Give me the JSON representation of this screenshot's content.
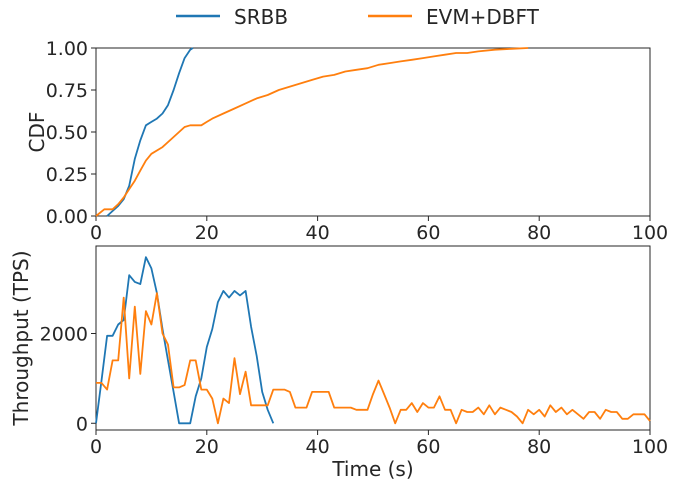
{
  "legend": [
    {
      "name": "SRBB",
      "color": "#1f77b4"
    },
    {
      "name": "EVM+DBFT",
      "color": "#ff7f0e"
    }
  ],
  "chart_data": [
    {
      "type": "line",
      "title": "",
      "xlabel": "",
      "ylabel": "CDF",
      "xlim": [
        0,
        100
      ],
      "ylim": [
        0,
        1
      ],
      "x_ticks": [
        "0",
        "20",
        "40",
        "60",
        "80",
        "100"
      ],
      "y_ticks": [
        "0.00",
        "0.25",
        "0.50",
        "0.75",
        "1.00"
      ],
      "grid": false,
      "series": [
        {
          "name": "SRBB",
          "color": "#1f77b4",
          "points": [
            [
              2,
              0
            ],
            [
              3,
              0.03
            ],
            [
              4,
              0.06
            ],
            [
              5,
              0.1
            ],
            [
              6,
              0.18
            ],
            [
              7,
              0.34
            ],
            [
              8,
              0.45
            ],
            [
              9,
              0.54
            ],
            [
              10,
              0.56
            ],
            [
              11,
              0.58
            ],
            [
              12,
              0.61
            ],
            [
              13,
              0.66
            ],
            [
              14,
              0.75
            ],
            [
              15,
              0.85
            ],
            [
              16,
              0.94
            ],
            [
              17,
              0.99
            ],
            [
              17.5,
              1.0
            ]
          ]
        },
        {
          "name": "EVM+DBFT",
          "color": "#ff7f0e",
          "points": [
            [
              0,
              0
            ],
            [
              1.5,
              0.04
            ],
            [
              3,
              0.04
            ],
            [
              4,
              0.07
            ],
            [
              5,
              0.11
            ],
            [
              6,
              0.16
            ],
            [
              7,
              0.21
            ],
            [
              8,
              0.27
            ],
            [
              9,
              0.33
            ],
            [
              10,
              0.37
            ],
            [
              12,
              0.41
            ],
            [
              14,
              0.47
            ],
            [
              16,
              0.53
            ],
            [
              17,
              0.54
            ],
            [
              19,
              0.54
            ],
            [
              20,
              0.56
            ],
            [
              21,
              0.58
            ],
            [
              23,
              0.61
            ],
            [
              25,
              0.64
            ],
            [
              27,
              0.67
            ],
            [
              29,
              0.7
            ],
            [
              31,
              0.72
            ],
            [
              33,
              0.75
            ],
            [
              35,
              0.77
            ],
            [
              37,
              0.79
            ],
            [
              39,
              0.81
            ],
            [
              41,
              0.83
            ],
            [
              43,
              0.84
            ],
            [
              45,
              0.86
            ],
            [
              47,
              0.87
            ],
            [
              49,
              0.88
            ],
            [
              51,
              0.9
            ],
            [
              53,
              0.91
            ],
            [
              55,
              0.92
            ],
            [
              57,
              0.93
            ],
            [
              59,
              0.94
            ],
            [
              61,
              0.95
            ],
            [
              63,
              0.96
            ],
            [
              65,
              0.97
            ],
            [
              67,
              0.97
            ],
            [
              69,
              0.98
            ],
            [
              72,
              0.99
            ],
            [
              75,
              0.995
            ],
            [
              78,
              1.0
            ]
          ]
        }
      ]
    },
    {
      "type": "line",
      "title": "",
      "xlabel": "Time (s)",
      "ylabel": "Throughput (TPS)",
      "xlim": [
        0,
        100
      ],
      "ylim": [
        -150,
        3950
      ],
      "x_ticks": [
        "0",
        "20",
        "40",
        "60",
        "80",
        "100"
      ],
      "y_ticks": [
        "0",
        "2000"
      ],
      "grid": false,
      "series": [
        {
          "name": "SRBB",
          "color": "#1f77b4",
          "points": [
            [
              0,
              0
            ],
            [
              1,
              950
            ],
            [
              2,
              1950
            ],
            [
              3,
              1950
            ],
            [
              4,
              2200
            ],
            [
              5,
              2300
            ],
            [
              6,
              3300
            ],
            [
              7,
              3150
            ],
            [
              8,
              3100
            ],
            [
              9,
              3700
            ],
            [
              10,
              3450
            ],
            [
              11,
              2900
            ],
            [
              12,
              2100
            ],
            [
              13,
              1400
            ],
            [
              14,
              700
            ],
            [
              15,
              0
            ],
            [
              16,
              0
            ],
            [
              17,
              0
            ],
            [
              18,
              600
            ],
            [
              19,
              1000
            ],
            [
              20,
              1700
            ],
            [
              21,
              2100
            ],
            [
              22,
              2700
            ],
            [
              23,
              2950
            ],
            [
              24,
              2800
            ],
            [
              25,
              2950
            ],
            [
              26,
              2850
            ],
            [
              27,
              2950
            ],
            [
              28,
              2150
            ],
            [
              29,
              1500
            ],
            [
              30,
              700
            ],
            [
              31,
              300
            ],
            [
              32,
              0
            ]
          ]
        },
        {
          "name": "EVM+DBFT",
          "color": "#ff7f0e",
          "points": [
            [
              0,
              900
            ],
            [
              1,
              900
            ],
            [
              2,
              750
            ],
            [
              3,
              1400
            ],
            [
              4,
              1400
            ],
            [
              5,
              2800
            ],
            [
              6,
              1000
            ],
            [
              7,
              2600
            ],
            [
              8,
              1100
            ],
            [
              9,
              2500
            ],
            [
              10,
              2200
            ],
            [
              11,
              2900
            ],
            [
              12,
              2000
            ],
            [
              13,
              1750
            ],
            [
              14,
              800
            ],
            [
              15,
              800
            ],
            [
              16,
              850
            ],
            [
              17,
              1400
            ],
            [
              18,
              1400
            ],
            [
              19,
              750
            ],
            [
              20,
              750
            ],
            [
              21,
              550
            ],
            [
              22,
              0
            ],
            [
              23,
              550
            ],
            [
              24,
              450
            ],
            [
              25,
              1450
            ],
            [
              26,
              650
            ],
            [
              27,
              1150
            ],
            [
              28,
              400
            ],
            [
              29,
              400
            ],
            [
              30,
              400
            ],
            [
              31,
              400
            ],
            [
              32,
              750
            ],
            [
              33,
              750
            ],
            [
              34,
              750
            ],
            [
              35,
              700
            ],
            [
              36,
              350
            ],
            [
              37,
              350
            ],
            [
              38,
              350
            ],
            [
              39,
              700
            ],
            [
              40,
              700
            ],
            [
              41,
              700
            ],
            [
              42,
              700
            ],
            [
              43,
              350
            ],
            [
              44,
              350
            ],
            [
              45,
              350
            ],
            [
              46,
              350
            ],
            [
              47,
              300
            ],
            [
              48,
              300
            ],
            [
              49,
              300
            ],
            [
              50,
              650
            ],
            [
              51,
              950
            ],
            [
              52,
              650
            ],
            [
              53,
              350
            ],
            [
              54,
              0
            ],
            [
              55,
              300
            ],
            [
              56,
              300
            ],
            [
              57,
              450
            ],
            [
              58,
              250
            ],
            [
              59,
              450
            ],
            [
              60,
              350
            ],
            [
              61,
              350
            ],
            [
              62,
              600
            ],
            [
              63,
              300
            ],
            [
              64,
              300
            ],
            [
              65,
              0
            ],
            [
              66,
              300
            ],
            [
              67,
              250
            ],
            [
              68,
              250
            ],
            [
              69,
              350
            ],
            [
              70,
              200
            ],
            [
              71,
              400
            ],
            [
              72,
              200
            ],
            [
              73,
              350
            ],
            [
              74,
              300
            ],
            [
              75,
              250
            ],
            [
              76,
              150
            ],
            [
              77,
              0
            ],
            [
              78,
              300
            ],
            [
              79,
              200
            ],
            [
              80,
              300
            ],
            [
              81,
              150
            ],
            [
              82,
              400
            ],
            [
              83,
              250
            ],
            [
              84,
              350
            ],
            [
              85,
              200
            ],
            [
              86,
              300
            ],
            [
              87,
              200
            ],
            [
              88,
              100
            ],
            [
              89,
              250
            ],
            [
              90,
              250
            ],
            [
              91,
              100
            ],
            [
              92,
              300
            ],
            [
              93,
              250
            ],
            [
              94,
              250
            ],
            [
              95,
              100
            ],
            [
              96,
              100
            ],
            [
              97,
              200
            ],
            [
              98,
              200
            ],
            [
              99,
              200
            ],
            [
              100,
              50
            ]
          ]
        }
      ]
    }
  ]
}
